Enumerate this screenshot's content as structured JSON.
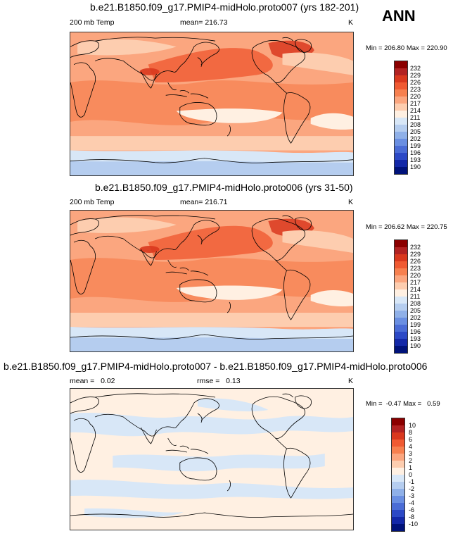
{
  "season": "ANN",
  "colors": {
    "abs_scale": [
      "#8B0000",
      "#B22222",
      "#D9381E",
      "#F05A32",
      "#F7804F",
      "#FBA67F",
      "#FDCDAF",
      "#FFF0E2",
      "#D8E7F7",
      "#B5CDEF",
      "#8FB0E8",
      "#6A8FE2",
      "#4A6CD6",
      "#2C49C6",
      "#1328A8",
      "#00127A"
    ],
    "diff_scale": [
      "#8B0000",
      "#B22222",
      "#D9381E",
      "#F05A32",
      "#F7804F",
      "#FBA67F",
      "#FDCDAF",
      "#FFF0E2",
      "#D8E7F7",
      "#B5CDEF",
      "#8FB0E8",
      "#6A8FE2",
      "#4A6CD6",
      "#2C49C6",
      "#1328A8",
      "#00127A"
    ]
  },
  "panels": [
    {
      "title": "b.e21.B1850.f09_g17.PMIP4-midHolo.proto007 (yrs 182-201)",
      "variable": "200 mb Temp",
      "mean": "mean= 216.73",
      "units": "K",
      "minmax": "Min = 206.80 Max = 220.90",
      "levels": [
        "232",
        "229",
        "226",
        "223",
        "220",
        "217",
        "214",
        "211",
        "208",
        "205",
        "202",
        "199",
        "196",
        "193",
        "190"
      ]
    },
    {
      "title": "b.e21.B1850.f09_g17.PMIP4-midHolo.proto006 (yrs 31-50)",
      "variable": "200 mb Temp",
      "mean": "mean= 216.71",
      "units": "K",
      "minmax": "Min = 206.62 Max = 220.75",
      "levels": [
        "232",
        "229",
        "226",
        "223",
        "220",
        "217",
        "214",
        "211",
        "208",
        "205",
        "202",
        "199",
        "196",
        "193",
        "190"
      ]
    },
    {
      "title": "b.e21.B1850.f09_g17.PMIP4-midHolo.proto007 - b.e21.B1850.f09_g17.PMIP4-midHolo.proto006",
      "mean": "mean =   0.02",
      "rmse": "rmse =   0.13",
      "units": "K",
      "minmax": "Min =  -0.47 Max =   0.59",
      "levels": [
        "10",
        "8",
        "6",
        "4",
        "3",
        "2",
        "1",
        "0",
        "-1",
        "-2",
        "-3",
        "-4",
        "-6",
        "-8",
        "-10"
      ]
    }
  ]
}
